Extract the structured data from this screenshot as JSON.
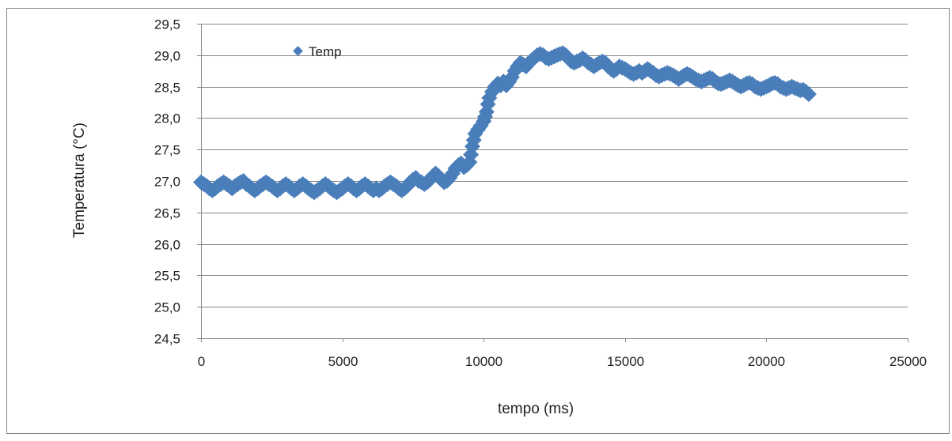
{
  "chart_data": {
    "type": "scatter",
    "title": "",
    "xlabel": "tempo (ms)",
    "ylabel": "Temperatura (°C)",
    "xlim": [
      0,
      25000
    ],
    "ylim": [
      24.5,
      29.5
    ],
    "x_ticks": [
      "0",
      "5000",
      "10000",
      "15000",
      "20000",
      "25000"
    ],
    "y_ticks": [
      "24,5",
      "25,0",
      "25,5",
      "26,0",
      "26,5",
      "27,0",
      "27,5",
      "28,0",
      "28,5",
      "29,0",
      "29,5"
    ],
    "grid": "horizontal",
    "legend": "top-left",
    "series": [
      {
        "name": "Temp",
        "color": "#4a7ebb",
        "marker": "diamond",
        "points": [
          [
            0,
            26.98
          ],
          [
            100,
            26.95
          ],
          [
            200,
            26.92
          ],
          [
            300,
            26.88
          ],
          [
            400,
            26.85
          ],
          [
            500,
            26.88
          ],
          [
            600,
            26.92
          ],
          [
            700,
            26.95
          ],
          [
            800,
            26.98
          ],
          [
            900,
            26.95
          ],
          [
            1000,
            26.92
          ],
          [
            1100,
            26.88
          ],
          [
            1200,
            26.92
          ],
          [
            1300,
            26.95
          ],
          [
            1400,
            26.98
          ],
          [
            1500,
            27.0
          ],
          [
            1600,
            26.95
          ],
          [
            1700,
            26.92
          ],
          [
            1800,
            26.88
          ],
          [
            1900,
            26.85
          ],
          [
            2000,
            26.88
          ],
          [
            2100,
            26.92
          ],
          [
            2200,
            26.95
          ],
          [
            2300,
            26.98
          ],
          [
            2400,
            26.95
          ],
          [
            2500,
            26.92
          ],
          [
            2600,
            26.88
          ],
          [
            2700,
            26.85
          ],
          [
            2800,
            26.88
          ],
          [
            2900,
            26.92
          ],
          [
            3000,
            26.95
          ],
          [
            3100,
            26.92
          ],
          [
            3200,
            26.88
          ],
          [
            3300,
            26.85
          ],
          [
            3400,
            26.88
          ],
          [
            3500,
            26.92
          ],
          [
            3600,
            26.95
          ],
          [
            3700,
            26.92
          ],
          [
            3800,
            26.88
          ],
          [
            3900,
            26.85
          ],
          [
            4000,
            26.82
          ],
          [
            4100,
            26.85
          ],
          [
            4200,
            26.88
          ],
          [
            4300,
            26.92
          ],
          [
            4400,
            26.95
          ],
          [
            4500,
            26.92
          ],
          [
            4600,
            26.88
          ],
          [
            4700,
            26.85
          ],
          [
            4800,
            26.82
          ],
          [
            4900,
            26.85
          ],
          [
            5000,
            26.88
          ],
          [
            5100,
            26.92
          ],
          [
            5200,
            26.95
          ],
          [
            5300,
            26.92
          ],
          [
            5400,
            26.88
          ],
          [
            5500,
            26.85
          ],
          [
            5600,
            26.88
          ],
          [
            5700,
            26.92
          ],
          [
            5800,
            26.95
          ],
          [
            5900,
            26.92
          ],
          [
            6000,
            26.88
          ],
          [
            6100,
            26.85
          ],
          [
            6200,
            26.88
          ],
          [
            6300,
            26.85
          ],
          [
            6400,
            26.88
          ],
          [
            6500,
            26.92
          ],
          [
            6600,
            26.95
          ],
          [
            6700,
            26.98
          ],
          [
            6800,
            26.95
          ],
          [
            6900,
            26.92
          ],
          [
            7000,
            26.88
          ],
          [
            7100,
            26.85
          ],
          [
            7200,
            26.88
          ],
          [
            7300,
            26.92
          ],
          [
            7400,
            26.98
          ],
          [
            7500,
            27.02
          ],
          [
            7600,
            27.05
          ],
          [
            7700,
            27.0
          ],
          [
            7800,
            26.98
          ],
          [
            7900,
            26.95
          ],
          [
            8000,
            26.98
          ],
          [
            8100,
            27.02
          ],
          [
            8200,
            27.08
          ],
          [
            8300,
            27.12
          ],
          [
            8400,
            27.08
          ],
          [
            8500,
            27.02
          ],
          [
            8600,
            26.98
          ],
          [
            8700,
            27.0
          ],
          [
            8800,
            27.05
          ],
          [
            8900,
            27.12
          ],
          [
            9000,
            27.2
          ],
          [
            9100,
            27.25
          ],
          [
            9200,
            27.28
          ],
          [
            9300,
            27.22
          ],
          [
            9400,
            27.25
          ],
          [
            9500,
            27.3
          ],
          [
            9550,
            27.42
          ],
          [
            9600,
            27.55
          ],
          [
            9650,
            27.65
          ],
          [
            9700,
            27.75
          ],
          [
            9800,
            27.82
          ],
          [
            9900,
            27.88
          ],
          [
            10000,
            27.95
          ],
          [
            10050,
            28.02
          ],
          [
            10100,
            28.1
          ],
          [
            10150,
            28.22
          ],
          [
            10200,
            28.32
          ],
          [
            10300,
            28.42
          ],
          [
            10400,
            28.5
          ],
          [
            10500,
            28.55
          ],
          [
            10600,
            28.52
          ],
          [
            10700,
            28.58
          ],
          [
            10800,
            28.52
          ],
          [
            10900,
            28.58
          ],
          [
            11000,
            28.65
          ],
          [
            11100,
            28.75
          ],
          [
            11200,
            28.82
          ],
          [
            11300,
            28.88
          ],
          [
            11400,
            28.85
          ],
          [
            11500,
            28.82
          ],
          [
            11600,
            28.88
          ],
          [
            11700,
            28.92
          ],
          [
            11800,
            28.96
          ],
          [
            11900,
            29.0
          ],
          [
            12000,
            29.02
          ],
          [
            12100,
            29.0
          ],
          [
            12200,
            28.96
          ],
          [
            12300,
            28.94
          ],
          [
            12400,
            28.96
          ],
          [
            12500,
            28.98
          ],
          [
            12600,
            29.0
          ],
          [
            12700,
            29.02
          ],
          [
            12800,
            29.03
          ],
          [
            12900,
            29.0
          ],
          [
            13000,
            28.95
          ],
          [
            13100,
            28.9
          ],
          [
            13200,
            28.88
          ],
          [
            13300,
            28.9
          ],
          [
            13400,
            28.92
          ],
          [
            13500,
            28.95
          ],
          [
            13600,
            28.92
          ],
          [
            13700,
            28.88
          ],
          [
            13800,
            28.85
          ],
          [
            13900,
            28.82
          ],
          [
            14000,
            28.85
          ],
          [
            14100,
            28.88
          ],
          [
            14200,
            28.9
          ],
          [
            14300,
            28.88
          ],
          [
            14400,
            28.82
          ],
          [
            14500,
            28.78
          ],
          [
            14600,
            28.75
          ],
          [
            14700,
            28.78
          ],
          [
            14800,
            28.82
          ],
          [
            14900,
            28.8
          ],
          [
            15000,
            28.78
          ],
          [
            15100,
            28.75
          ],
          [
            15200,
            28.72
          ],
          [
            15300,
            28.7
          ],
          [
            15400,
            28.72
          ],
          [
            15500,
            28.75
          ],
          [
            15600,
            28.72
          ],
          [
            15700,
            28.75
          ],
          [
            15800,
            28.78
          ],
          [
            15900,
            28.75
          ],
          [
            16000,
            28.72
          ],
          [
            16100,
            28.68
          ],
          [
            16200,
            28.66
          ],
          [
            16300,
            28.68
          ],
          [
            16400,
            28.7
          ],
          [
            16500,
            28.72
          ],
          [
            16600,
            28.7
          ],
          [
            16700,
            28.68
          ],
          [
            16800,
            28.65
          ],
          [
            16900,
            28.62
          ],
          [
            17000,
            28.65
          ],
          [
            17100,
            28.68
          ],
          [
            17200,
            28.7
          ],
          [
            17300,
            28.68
          ],
          [
            17400,
            28.65
          ],
          [
            17500,
            28.62
          ],
          [
            17600,
            28.6
          ],
          [
            17700,
            28.58
          ],
          [
            17800,
            28.6
          ],
          [
            17900,
            28.62
          ],
          [
            18000,
            28.64
          ],
          [
            18100,
            28.62
          ],
          [
            18200,
            28.58
          ],
          [
            18300,
            28.55
          ],
          [
            18400,
            28.54
          ],
          [
            18500,
            28.56
          ],
          [
            18600,
            28.58
          ],
          [
            18700,
            28.6
          ],
          [
            18800,
            28.58
          ],
          [
            18900,
            28.55
          ],
          [
            19000,
            28.52
          ],
          [
            19100,
            28.5
          ],
          [
            19200,
            28.52
          ],
          [
            19300,
            28.55
          ],
          [
            19400,
            28.56
          ],
          [
            19500,
            28.54
          ],
          [
            19600,
            28.5
          ],
          [
            19700,
            28.48
          ],
          [
            19800,
            28.46
          ],
          [
            19900,
            28.48
          ],
          [
            20000,
            28.5
          ],
          [
            20100,
            28.52
          ],
          [
            20200,
            28.55
          ],
          [
            20300,
            28.56
          ],
          [
            20400,
            28.54
          ],
          [
            20500,
            28.5
          ],
          [
            20600,
            28.48
          ],
          [
            20700,
            28.46
          ],
          [
            20800,
            28.48
          ],
          [
            20900,
            28.5
          ],
          [
            21000,
            28.48
          ],
          [
            21100,
            28.46
          ],
          [
            21200,
            28.44
          ],
          [
            21300,
            28.45
          ],
          [
            21400,
            28.42
          ],
          [
            21500,
            28.38
          ]
        ]
      }
    ]
  }
}
